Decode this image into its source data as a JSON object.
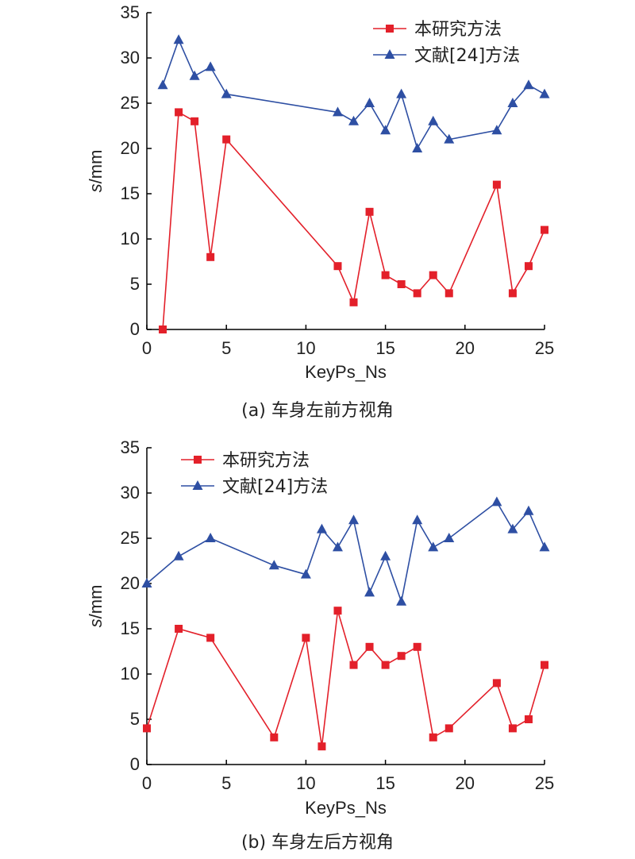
{
  "chart_data": [
    {
      "type": "line",
      "caption": "(a) 车身左前方视角",
      "xlabel": "KeyPs_Ns",
      "ylabel": "s/mm",
      "xlim": [
        0,
        25
      ],
      "ylim": [
        0,
        35
      ],
      "xticks": [
        0,
        5,
        10,
        15,
        20,
        25
      ],
      "yticks": [
        0,
        5,
        10,
        15,
        20,
        25,
        30,
        35
      ],
      "legend_position": "top-right",
      "series": [
        {
          "name": "本研究方法",
          "color": "#e3202a",
          "marker": "square",
          "x": [
            1,
            2,
            3,
            4,
            5,
            12,
            13,
            14,
            15,
            16,
            17,
            18,
            19,
            22,
            23,
            24,
            25
          ],
          "y": [
            0,
            24,
            23,
            8,
            21,
            7,
            3,
            13,
            6,
            5,
            4,
            6,
            4,
            16,
            4,
            7,
            11
          ]
        },
        {
          "name": "文献[24]方法",
          "color": "#2e4fa3",
          "marker": "triangle",
          "x": [
            1,
            2,
            3,
            4,
            5,
            12,
            13,
            14,
            15,
            16,
            17,
            18,
            19,
            22,
            23,
            24,
            25
          ],
          "y": [
            27,
            32,
            28,
            29,
            26,
            24,
            23,
            25,
            22,
            26,
            20,
            23,
            21,
            22,
            25,
            27,
            26
          ]
        }
      ]
    },
    {
      "type": "line",
      "caption": "(b) 车身左后方视角",
      "xlabel": "KeyPs_Ns",
      "ylabel": "s/mm",
      "xlim": [
        0,
        25
      ],
      "ylim": [
        0,
        35
      ],
      "xticks": [
        0,
        5,
        10,
        15,
        20,
        25
      ],
      "yticks": [
        0,
        5,
        10,
        15,
        20,
        25,
        30,
        35
      ],
      "legend_position": "top-left",
      "series": [
        {
          "name": "本研究方法",
          "color": "#e3202a",
          "marker": "square",
          "x": [
            0,
            2,
            4,
            8,
            10,
            11,
            12,
            13,
            14,
            15,
            16,
            17,
            18,
            19,
            22,
            23,
            24,
            25
          ],
          "y": [
            4,
            15,
            14,
            3,
            14,
            2,
            17,
            11,
            13,
            11,
            12,
            13,
            3,
            4,
            9,
            4,
            5,
            11
          ]
        },
        {
          "name": "文献[24]方法",
          "color": "#2e4fa3",
          "marker": "triangle",
          "x": [
            0,
            2,
            4,
            8,
            10,
            11,
            12,
            13,
            14,
            15,
            16,
            17,
            18,
            19,
            22,
            23,
            24,
            25
          ],
          "y": [
            20,
            23,
            25,
            22,
            21,
            26,
            24,
            27,
            19,
            23,
            18,
            27,
            24,
            25,
            29,
            26,
            28,
            24
          ]
        }
      ]
    }
  ]
}
